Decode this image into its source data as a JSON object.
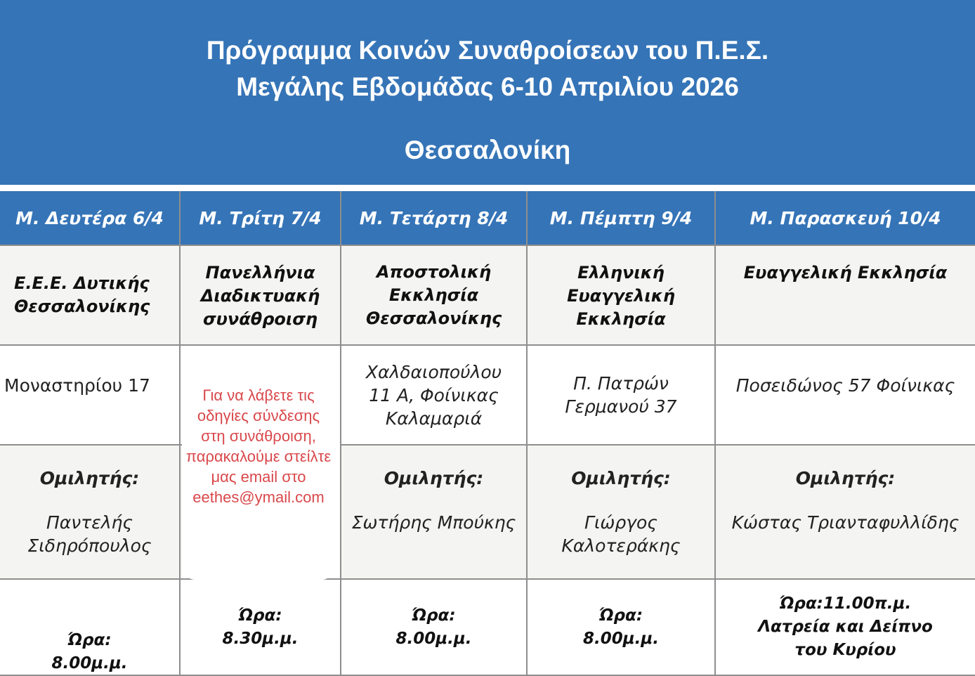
{
  "title": {
    "line1": "Πρόγραμμα Κοινών Συναθροίσεων του Π.Ε.Σ.",
    "line2": "Μεγάλης Εβδομάδας 6-10 Απριλίου 2026",
    "city": "Θεσσαλονίκη"
  },
  "days": [
    {
      "header": "Μ. Δευτέρα 6/4",
      "church": "Ε.Ε.Ε. Δυτικής Θεσσαλονίκης",
      "address": "Μοναστηρίου 17",
      "speaker_label": "Ομιλητής:",
      "speaker": "Παντελής Σιδηρόπουλος",
      "time": "Ώρα: 8.00μ.μ."
    },
    {
      "header": "Μ. Τρίτη 7/4",
      "church": "Πανελλήνια Διαδικτυακή συνάθροιση",
      "note": "Για να λάβετε τις οδηγίες σύνδεσης στη συνάθροιση, παρακαλούμε στείλτε μας email στο eethes@ymail.com",
      "time": "Ώρα: 8.30μ.μ."
    },
    {
      "header": "Μ. Τετάρτη 8/4",
      "church": "Αποστολική Εκκλησία Θεσσαλονίκης",
      "address": "Χαλδαιοπούλου 11 Α, Φοίνικας Καλαμαριά",
      "speaker_label": "Ομιλητής:",
      "speaker": "Σωτήρης Μπούκης",
      "time": "Ώρα: 8.00μ.μ."
    },
    {
      "header": "Μ. Πέμπτη 9/4",
      "church": "Ελληνική Ευαγγελική Εκκλησία",
      "address": "Π. Πατρών Γερμανού 37",
      "speaker_label": "Ομιλητής:",
      "speaker": "Γιώργος Καλοτεράκης",
      "time": "Ώρα: 8.00μ.μ."
    },
    {
      "header": "Μ. Παρασκευή 10/4",
      "church": "Ευαγγελική Εκκλησία",
      "address": "Ποσειδώνος 57 Φοίνικας",
      "speaker_label": "Ομιλητής:",
      "speaker": "Κώστας Τριανταφυλλίδης",
      "time": "Ώρα:11.00π.μ. Λατρεία και Δείπνο του Κυρίου"
    }
  ],
  "colors": {
    "header_blue": "#3574b7",
    "note_red": "#d9484b"
  }
}
